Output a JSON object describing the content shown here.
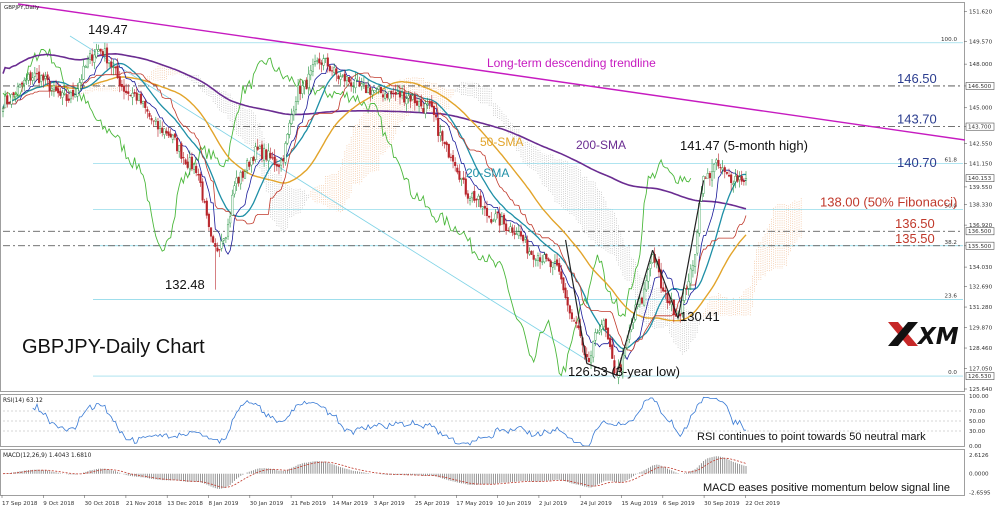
{
  "window": {
    "symbol_caption": "GBPJPY,Daily"
  },
  "chart_data": [
    {
      "type": "candlestick",
      "title": "GBPJPY-Daily Chart",
      "brand": "XM",
      "ylim": [
        125.64,
        152.14
      ],
      "y_ticks": [
        "151.620",
        "149.570",
        "148.000",
        "146.500",
        "145.000",
        "143.700",
        "142.550",
        "141.150",
        "139.550",
        "138.330",
        "136.920",
        "135.500",
        "134.030",
        "132.690",
        "131.280",
        "129.870",
        "128.460",
        "127.050",
        "125.640"
      ],
      "highlight_ticks": [
        "146.500",
        "143.700",
        "140.153",
        "136.500",
        "135.500",
        "126.530"
      ],
      "fib_labels": [
        "100.0",
        "61.8",
        "50.0",
        "38.2",
        "23.6",
        "0.0"
      ],
      "fib_levels": [
        149.47,
        141.15,
        138.0,
        135.5,
        131.8,
        126.53
      ],
      "x_labels": [
        "17 Sep 2018",
        "9 Oct 2018",
        "30 Oct 2018",
        "21 Nov 2018",
        "13 Dec 2018",
        "8 Jan 2019",
        "30 Jan 2019",
        "21 Feb 2019",
        "14 Mar 2019",
        "3 Apr 2019",
        "25 Apr 2019",
        "17 May 2019",
        "10 Jun 2019",
        "2 Jul 2019",
        "24 Jul 2019",
        "15 Aug 2019",
        "6 Sep 2019",
        "30 Sep 2019",
        "22 Oct 2019"
      ],
      "close_anchors": [
        [
          0,
          145.4
        ],
        [
          15,
          147.2
        ],
        [
          30,
          145.6
        ],
        [
          45,
          149.0
        ],
        [
          60,
          146.0
        ],
        [
          75,
          143.5
        ],
        [
          90,
          141.0
        ],
        [
          100,
          135.2
        ],
        [
          105,
          136.5
        ],
        [
          110,
          140.0
        ],
        [
          120,
          142.0
        ],
        [
          130,
          141.2
        ],
        [
          140,
          146.3
        ],
        [
          150,
          148.2
        ],
        [
          160,
          147.0
        ],
        [
          170,
          146.3
        ],
        [
          180,
          146.0
        ],
        [
          190,
          145.8
        ],
        [
          200,
          145.0
        ],
        [
          210,
          142.0
        ],
        [
          220,
          139.0
        ],
        [
          230,
          137.5
        ],
        [
          240,
          136.7
        ],
        [
          250,
          135.0
        ],
        [
          260,
          134.0
        ],
        [
          270,
          130.0
        ],
        [
          275,
          127.4
        ],
        [
          282,
          130.2
        ],
        [
          289,
          126.8
        ],
        [
          300,
          131.5
        ],
        [
          306,
          134.8
        ],
        [
          312,
          132.0
        ],
        [
          318,
          130.9
        ],
        [
          324,
          133.5
        ],
        [
          330,
          140.0
        ],
        [
          336,
          141.0
        ],
        [
          342,
          140.2
        ],
        [
          350,
          140.15
        ]
      ],
      "series": [
        {
          "name": "20-SMA",
          "color": "#1e8fa6"
        },
        {
          "name": "50-SMA",
          "color": "#e2a42a"
        },
        {
          "name": "200-SMA",
          "color": "#6a2c91"
        },
        {
          "name": "Tenkan-sen",
          "color": "#1a1a99"
        },
        {
          "name": "Kijun-sen",
          "color": "#c0392b"
        },
        {
          "name": "Chikou span",
          "color": "#4cb83c"
        }
      ],
      "annotations": [
        {
          "text": "149.47"
        },
        {
          "text": "132.48"
        },
        {
          "text": "141.47 (5-month high)"
        },
        {
          "text": "126.53 (3-year low)"
        },
        {
          "text": "130.41"
        },
        {
          "text": "Long-term descending trendline"
        },
        {
          "text": "20-SMA"
        },
        {
          "text": "50-SMA"
        },
        {
          "text": "200-SMA"
        }
      ],
      "levels": [
        {
          "price": 146.5,
          "text": "146.50",
          "color": "#2b3d8f",
          "style": "dashed"
        },
        {
          "price": 143.7,
          "text": "143.70",
          "color": "#2b3d8f",
          "style": "dashed"
        },
        {
          "price": 140.7,
          "text": "140.70",
          "color": "#2b3d8f",
          "style": "fib"
        },
        {
          "price": 138.0,
          "text": "138.00 (50% Fibonacci)",
          "color": "#c0392b",
          "style": "fib"
        },
        {
          "price": 136.5,
          "text": "136.50",
          "color": "#c0392b",
          "style": "dashed"
        },
        {
          "price": 135.5,
          "text": "135.50",
          "color": "#c0392b",
          "style": "dashed"
        }
      ]
    },
    {
      "type": "line",
      "title": "RSI(14) 63.12",
      "ylim": [
        0,
        100
      ],
      "y_ticks": [
        "100.00",
        "70.00",
        "50.00",
        "30.00",
        "0.00"
      ],
      "annotation": "RSI continues to point towards 50 neutral mark"
    },
    {
      "type": "bar",
      "title": "MACD(12,26,9) 1.4043 1.6810",
      "ylim": [
        -3.0,
        3.2
      ],
      "y_ticks": [
        "2.6126",
        "0.0000",
        "-2.6595"
      ],
      "annotation": "MACD eases positive momentum below signal line"
    }
  ]
}
